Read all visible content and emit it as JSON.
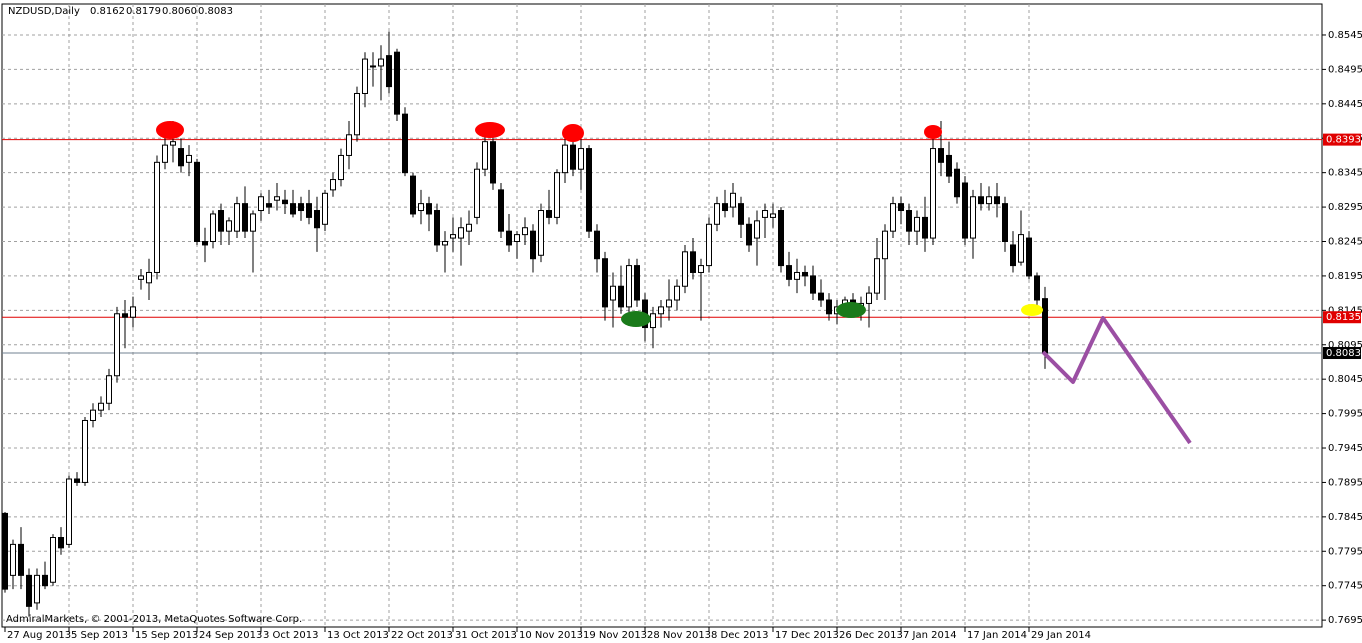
{
  "chart_data": {
    "type": "candlestick",
    "title": "NZDUSD,Daily",
    "last_bar_labels": [
      "0.8162",
      "0.8179",
      "0.8060",
      "0.8083"
    ],
    "copyright": "AdmiralMarkets, © 2001-2013, MetaQuotes Software Corp.",
    "categories": [
      "27 Aug 2013",
      null,
      null,
      null,
      null,
      null,
      null,
      null,
      "5 Sep 2013",
      null,
      null,
      null,
      null,
      null,
      null,
      null,
      "15 Sep 2013",
      null,
      null,
      null,
      null,
      null,
      null,
      null,
      "24 Sep 2013",
      null,
      null,
      null,
      null,
      null,
      null,
      null,
      "3 Oct 2013",
      null,
      null,
      null,
      null,
      null,
      null,
      null,
      "13 Oct 2013",
      null,
      null,
      null,
      null,
      null,
      null,
      null,
      "22 Oct 2013",
      null,
      null,
      null,
      null,
      null,
      null,
      null,
      "31 Oct 2013",
      null,
      null,
      null,
      null,
      null,
      null,
      null,
      "10 Nov 2013",
      null,
      null,
      null,
      null,
      null,
      null,
      null,
      "19 Nov 2013",
      null,
      null,
      null,
      null,
      null,
      null,
      null,
      "28 Nov 2013",
      null,
      null,
      null,
      null,
      null,
      null,
      null,
      "8 Dec 2013",
      null,
      null,
      null,
      null,
      null,
      null,
      null,
      "17 Dec 2013",
      null,
      null,
      null,
      null,
      null,
      null,
      null,
      "26 Dec 2013",
      null,
      null,
      null,
      null,
      null,
      null,
      null,
      "7 Jan 2014",
      null,
      null,
      null,
      null,
      null,
      null,
      null,
      "17 Jan 2014",
      null,
      null,
      null,
      null,
      null,
      null,
      null,
      "29 Jan 2014",
      null,
      null
    ],
    "open": [
      0.785,
      0.776,
      0.7805,
      0.776,
      0.772,
      0.776,
      0.775,
      0.7815,
      0.7805,
      0.79,
      0.7895,
      0.7985,
      0.8,
      0.801,
      0.805,
      0.814,
      0.8135,
      0.819,
      0.8185,
      0.82,
      0.836,
      0.8385,
      0.838,
      0.836,
      0.836,
      0.8245,
      0.8245,
      0.829,
      0.826,
      0.826,
      0.83,
      0.826,
      0.829,
      0.83,
      0.8305,
      0.8305,
      0.83,
      0.83,
      0.83,
      0.829,
      0.827,
      0.832,
      0.8335,
      0.837,
      0.84,
      0.846,
      0.85,
      0.85,
      0.8515,
      0.852,
      0.843,
      0.834,
      0.829,
      0.83,
      0.829,
      0.824,
      0.825,
      0.825,
      0.826,
      0.828,
      0.835,
      0.839,
      0.832,
      0.826,
      0.8245,
      0.8255,
      0.826,
      0.8225,
      0.829,
      0.828,
      0.8345,
      0.8385,
      0.835,
      0.838,
      0.826,
      0.822,
      0.816,
      0.818,
      0.815,
      0.821,
      0.816,
      0.812,
      0.814,
      0.815,
      0.816,
      0.818,
      0.823,
      0.82,
      0.821,
      0.827,
      0.83,
      0.8295,
      0.83,
      0.827,
      0.825,
      0.828,
      0.828,
      0.829,
      0.821,
      0.819,
      0.82,
      0.8195,
      0.817,
      0.816,
      0.814,
      0.815,
      0.816,
      0.8145,
      0.8155,
      0.817,
      0.822,
      0.826,
      0.83,
      0.829,
      0.826,
      0.828,
      0.825,
      0.838,
      0.837,
      0.835,
      0.833,
      0.825,
      0.831,
      0.83,
      0.831,
      0.83,
      0.824,
      0.8215,
      0.825,
      0.8195,
      0.8162
    ],
    "high": [
      0.7852,
      0.7812,
      0.783,
      0.777,
      0.777,
      0.778,
      0.782,
      0.783,
      0.7905,
      0.791,
      0.799,
      0.801,
      0.802,
      0.806,
      0.815,
      0.816,
      0.8165,
      0.8205,
      0.822,
      0.837,
      0.84,
      0.842,
      0.8395,
      0.8385,
      0.8365,
      0.8265,
      0.829,
      0.83,
      0.828,
      0.831,
      0.8325,
      0.829,
      0.8315,
      0.832,
      0.833,
      0.832,
      0.832,
      0.831,
      0.832,
      0.831,
      0.832,
      0.8345,
      0.838,
      0.842,
      0.847,
      0.852,
      0.852,
      0.853,
      0.855,
      0.8525,
      0.844,
      0.8345,
      0.832,
      0.831,
      0.83,
      0.826,
      0.828,
      0.828,
      0.829,
      0.836,
      0.84,
      0.84,
      0.833,
      0.8285,
      0.826,
      0.828,
      0.827,
      0.83,
      0.832,
      0.835,
      0.84,
      0.839,
      0.8395,
      0.8385,
      0.827,
      0.823,
      0.82,
      0.821,
      0.822,
      0.822,
      0.817,
      0.815,
      0.816,
      0.819,
      0.819,
      0.824,
      0.825,
      0.822,
      0.828,
      0.831,
      0.832,
      0.833,
      0.831,
      0.828,
      0.829,
      0.83,
      0.83,
      0.8295,
      0.823,
      0.822,
      0.821,
      0.821,
      0.819,
      0.817,
      0.816,
      0.8165,
      0.817,
      0.8165,
      0.818,
      0.825,
      0.827,
      0.831,
      0.831,
      0.83,
      0.829,
      0.831,
      0.84,
      0.842,
      0.839,
      0.836,
      0.834,
      0.832,
      0.833,
      0.8325,
      0.833,
      0.831,
      0.826,
      0.829,
      0.826,
      0.82,
      0.8179
    ],
    "low": [
      0.7735,
      0.774,
      0.774,
      0.77,
      0.771,
      0.774,
      0.7745,
      0.779,
      0.78,
      0.789,
      0.789,
      0.7975,
      0.799,
      0.8,
      0.804,
      0.809,
      0.812,
      0.8175,
      0.816,
      0.819,
      0.835,
      0.836,
      0.8345,
      0.834,
      0.824,
      0.8215,
      0.8235,
      0.824,
      0.824,
      0.825,
      0.825,
      0.82,
      0.8275,
      0.8285,
      0.829,
      0.8285,
      0.828,
      0.8275,
      0.827,
      0.823,
      0.826,
      0.831,
      0.8325,
      0.835,
      0.839,
      0.844,
      0.847,
      0.845,
      0.846,
      0.842,
      0.834,
      0.828,
      0.827,
      0.826,
      0.823,
      0.82,
      0.823,
      0.821,
      0.824,
      0.827,
      0.834,
      0.832,
      0.825,
      0.823,
      0.822,
      0.824,
      0.82,
      0.8215,
      0.827,
      0.827,
      0.833,
      0.834,
      0.832,
      0.825,
      0.82,
      0.813,
      0.812,
      0.814,
      0.814,
      0.815,
      0.81,
      0.809,
      0.812,
      0.813,
      0.8145,
      0.817,
      0.819,
      0.813,
      0.82,
      0.826,
      0.828,
      0.828,
      0.825,
      0.823,
      0.821,
      0.825,
      0.8265,
      0.82,
      0.818,
      0.817,
      0.818,
      0.816,
      0.815,
      0.813,
      0.8125,
      0.814,
      0.8135,
      0.813,
      0.812,
      0.816,
      0.816,
      0.825,
      0.827,
      0.824,
      0.824,
      0.823,
      0.824,
      0.834,
      0.833,
      0.83,
      0.824,
      0.822,
      0.829,
      0.829,
      0.828,
      0.823,
      0.82,
      0.821,
      0.819,
      0.814,
      0.806
    ],
    "close": [
      0.774,
      0.7805,
      0.776,
      0.7715,
      0.776,
      0.7745,
      0.7815,
      0.78,
      0.79,
      0.7895,
      0.7985,
      0.8,
      0.801,
      0.805,
      0.814,
      0.8135,
      0.815,
      0.8195,
      0.82,
      0.836,
      0.8385,
      0.839,
      0.8355,
      0.837,
      0.8245,
      0.824,
      0.8285,
      0.826,
      0.8275,
      0.83,
      0.826,
      0.8285,
      0.831,
      0.8295,
      0.831,
      0.83,
      0.8285,
      0.829,
      0.828,
      0.8265,
      0.8315,
      0.8335,
      0.837,
      0.84,
      0.846,
      0.851,
      0.85,
      0.851,
      0.847,
      0.843,
      0.8345,
      0.8285,
      0.83,
      0.8285,
      0.824,
      0.8245,
      0.8255,
      0.8265,
      0.827,
      0.835,
      0.839,
      0.833,
      0.826,
      0.824,
      0.8255,
      0.8265,
      0.822,
      0.829,
      0.828,
      0.8345,
      0.8385,
      0.835,
      0.838,
      0.826,
      0.822,
      0.815,
      0.818,
      0.815,
      0.821,
      0.816,
      0.812,
      0.814,
      0.815,
      0.816,
      0.818,
      0.823,
      0.82,
      0.821,
      0.827,
      0.83,
      0.829,
      0.8315,
      0.827,
      0.824,
      0.8275,
      0.829,
      0.8285,
      0.821,
      0.819,
      0.82,
      0.8195,
      0.817,
      0.816,
      0.814,
      0.815,
      0.816,
      0.8145,
      0.8155,
      0.817,
      0.822,
      0.826,
      0.83,
      0.829,
      0.826,
      0.828,
      0.825,
      0.838,
      0.836,
      0.834,
      0.831,
      0.825,
      0.831,
      0.83,
      0.831,
      0.83,
      0.8245,
      0.821,
      0.8255,
      0.8195,
      0.816,
      0.8083
    ],
    "up_color": "#ffffff",
    "down_color": "#000000",
    "ylim": [
      0.7685,
      0.859
    ],
    "yticks": [
      0.8545,
      0.8495,
      0.8445,
      0.8395,
      0.8345,
      0.8295,
      0.8245,
      0.8195,
      0.8145,
      0.8095,
      0.8045,
      0.7995,
      0.7945,
      0.7895,
      0.7845,
      0.7795,
      0.7745,
      0.7695
    ],
    "hlines": [
      {
        "value": 0.8393,
        "color": "#e00000",
        "label_color": "#e00000"
      },
      {
        "value": 0.8135,
        "color": "#e00000",
        "label_color": "#e00000"
      },
      {
        "value": 0.8083,
        "color": "#708090",
        "label_color": "#000000"
      }
    ],
    "grid": true
  }
}
